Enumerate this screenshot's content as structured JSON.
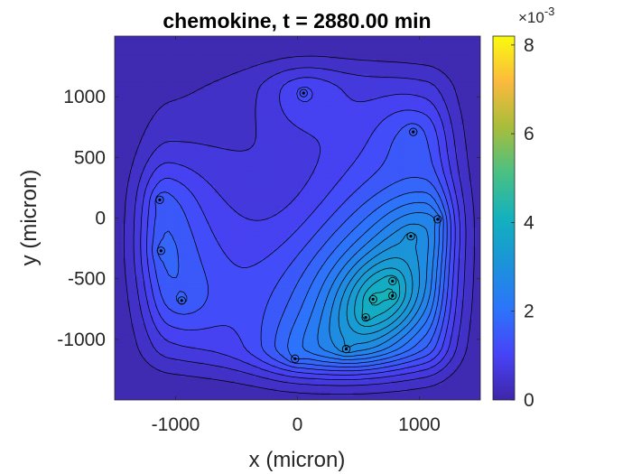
{
  "chart_data": {
    "type": "heatmap",
    "title": "chemokine, t = 2880.00 min",
    "xlabel": "x (micron)",
    "ylabel": "y (micron)",
    "xlim": [
      -1500,
      1500
    ],
    "ylim": [
      -1500,
      1500
    ],
    "x_ticks": [
      -1000,
      0,
      1000
    ],
    "x_tick_labels": [
      "-1000",
      "0",
      "1000"
    ],
    "y_ticks": [
      1000,
      500,
      0,
      -500,
      -1000
    ],
    "y_tick_labels": [
      "1000",
      "500",
      "0",
      "-500",
      "-1000"
    ],
    "colormap": "parula",
    "colorbar": {
      "range": [
        0,
        0.0082
      ],
      "ticks": [
        0,
        0.002,
        0.004,
        0.006,
        0.008
      ],
      "tick_labels": [
        "0",
        "2",
        "4",
        "6",
        "8"
      ],
      "exponent_label": "×10",
      "exponent_value": "-3",
      "placement": "right"
    },
    "contour_color": "#000000",
    "sources": [
      {
        "x": 50,
        "y": 1030
      },
      {
        "x": 950,
        "y": 710
      },
      {
        "x": -1130,
        "y": 150
      },
      {
        "x": -1120,
        "y": -270
      },
      {
        "x": -950,
        "y": -680
      },
      {
        "x": -20,
        "y": -1160
      },
      {
        "x": 400,
        "y": -1080
      },
      {
        "x": 560,
        "y": -820
      },
      {
        "x": 620,
        "y": -670
      },
      {
        "x": 780,
        "y": -520
      },
      {
        "x": 780,
        "y": -640
      },
      {
        "x": 930,
        "y": -150
      },
      {
        "x": 1150,
        "y": -10
      }
    ]
  }
}
